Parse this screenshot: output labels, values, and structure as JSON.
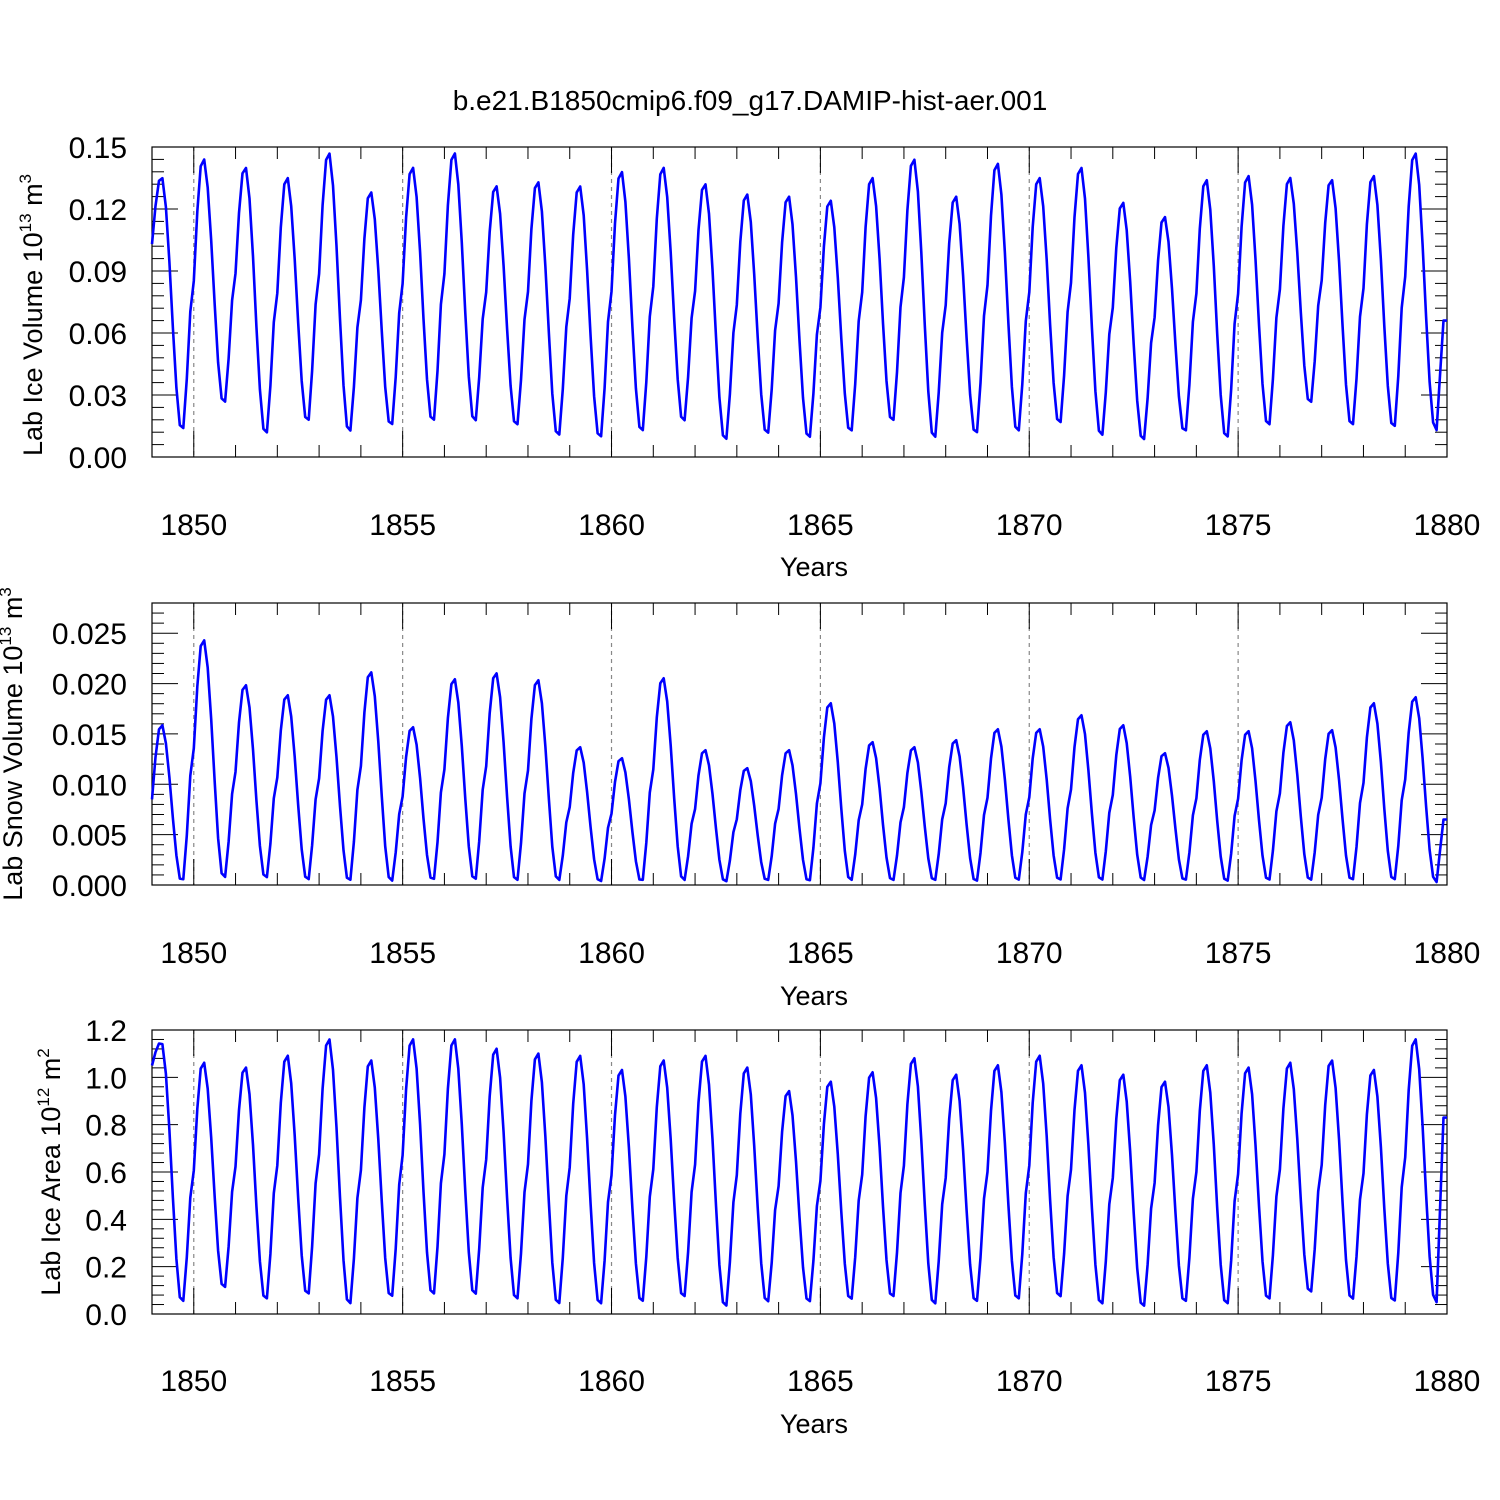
{
  "title": "b.e21.B1850cmip6.f09_g17.DAMIP-hist-aer.001",
  "colors": {
    "series": "#0000ff",
    "axes": "#000000",
    "grid": "#888888"
  },
  "chart_data": [
    {
      "type": "line",
      "name": "ice-volume",
      "ylabel_main": "Lab Ice Volume 10",
      "ylabel_exp": "13",
      "ylabel_unit": " m",
      "ylabel_unit_exp": "3",
      "xlabel": "Years",
      "xlim": [
        1849,
        1880
      ],
      "ylim": [
        0,
        0.15
      ],
      "xticks": [
        1850,
        1855,
        1860,
        1865,
        1870,
        1875,
        1880
      ],
      "yticks": [
        0.0,
        0.03,
        0.06,
        0.09,
        0.12,
        0.15
      ],
      "ytick_labels": [
        "0.00",
        "0.03",
        "0.06",
        "0.09",
        "0.12",
        "0.15"
      ],
      "dashed_year_lines": [
        1850,
        1855,
        1860,
        1865,
        1870,
        1875
      ],
      "annual_peaks": [
        0.136,
        0.145,
        0.141,
        0.136,
        0.148,
        0.129,
        0.141,
        0.148,
        0.132,
        0.134,
        0.132,
        0.139,
        0.141,
        0.133,
        0.128,
        0.127,
        0.125,
        0.136,
        0.145,
        0.127,
        0.143,
        0.136,
        0.141,
        0.124,
        0.117,
        0.135,
        0.137,
        0.136,
        0.135,
        0.137,
        0.148
      ],
      "annual_troughs": [
        0.012,
        0.025,
        0.01,
        0.016,
        0.011,
        0.014,
        0.016,
        0.016,
        0.014,
        0.009,
        0.008,
        0.011,
        0.016,
        0.007,
        0.01,
        0.008,
        0.011,
        0.016,
        0.008,
        0.01,
        0.011,
        0.015,
        0.009,
        0.007,
        0.011,
        0.008,
        0.014,
        0.025,
        0.014,
        0.013,
        0.013
      ],
      "start_value": 0.103,
      "end_value": 0.066
    },
    {
      "type": "line",
      "name": "snow-volume",
      "ylabel_main": "Lab Snow Volume 10",
      "ylabel_exp": "13",
      "ylabel_unit": " m",
      "ylabel_unit_exp": "3",
      "xlabel": "Years",
      "xlim": [
        1849,
        1880
      ],
      "ylim": [
        0,
        0.028
      ],
      "xticks": [
        1850,
        1855,
        1860,
        1865,
        1870,
        1875,
        1880
      ],
      "yticks": [
        0.0,
        0.005,
        0.01,
        0.015,
        0.02,
        0.025
      ],
      "ytick_labels": [
        "0.000",
        "0.005",
        "0.010",
        "0.015",
        "0.020",
        "0.025"
      ],
      "dashed_year_lines": [
        1850,
        1855,
        1860,
        1865,
        1870,
        1875
      ],
      "annual_peaks": [
        0.016,
        0.0245,
        0.02,
        0.019,
        0.019,
        0.0213,
        0.0158,
        0.0206,
        0.0212,
        0.0205,
        0.0138,
        0.0127,
        0.0207,
        0.0135,
        0.0117,
        0.0135,
        0.0182,
        0.0143,
        0.0138,
        0.0145,
        0.0156,
        0.0156,
        0.017,
        0.016,
        0.0132,
        0.0154,
        0.0154,
        0.0163,
        0.0155,
        0.0182,
        0.0188
      ],
      "annual_troughs": [
        0.0002,
        0.0005,
        0.0005,
        0.0003,
        0.0002,
        0.0002,
        0.0003,
        0.0003,
        0.0002,
        0.0003,
        0.0002,
        0.0002,
        0.0003,
        0.0002,
        0.0003,
        0.0002,
        0.0003,
        0.0003,
        0.0003,
        0.0002,
        0.0003,
        0.0003,
        0.0003,
        0.0003,
        0.0003,
        0.0002,
        0.0003,
        0.0003,
        0.0003,
        0.0003,
        0.0003
      ],
      "start_value": 0.0085,
      "end_value": 0.0065
    },
    {
      "type": "line",
      "name": "ice-area",
      "ylabel_main": "Lab Ice Area 10",
      "ylabel_exp": "12",
      "ylabel_unit": " m",
      "ylabel_unit_exp": "2",
      "xlabel": "Years",
      "xlim": [
        1849,
        1880
      ],
      "ylim": [
        0,
        1.2
      ],
      "xticks": [
        1850,
        1855,
        1860,
        1865,
        1870,
        1875,
        1880
      ],
      "yticks": [
        0.0,
        0.2,
        0.4,
        0.6,
        0.8,
        1.0,
        1.2
      ],
      "ytick_labels": [
        "0.0",
        "0.2",
        "0.4",
        "0.6",
        "0.8",
        "1.0",
        "1.2"
      ],
      "dashed_year_lines": [
        1850,
        1855,
        1860,
        1865,
        1870,
        1875
      ],
      "annual_peaks": [
        1.15,
        1.07,
        1.05,
        1.1,
        1.17,
        1.08,
        1.17,
        1.17,
        1.13,
        1.11,
        1.1,
        1.04,
        1.08,
        1.1,
        1.05,
        0.95,
        0.99,
        1.03,
        1.09,
        1.02,
        1.06,
        1.1,
        1.06,
        1.02,
        0.99,
        1.06,
        1.05,
        1.07,
        1.08,
        1.04,
        1.17
      ],
      "annual_troughs": [
        0.04,
        0.1,
        0.05,
        0.07,
        0.03,
        0.06,
        0.07,
        0.07,
        0.05,
        0.03,
        0.03,
        0.04,
        0.06,
        0.02,
        0.04,
        0.04,
        0.05,
        0.06,
        0.03,
        0.04,
        0.05,
        0.06,
        0.03,
        0.02,
        0.04,
        0.03,
        0.05,
        0.08,
        0.05,
        0.04,
        0.05
      ],
      "start_value": 1.05,
      "end_value": 0.83
    }
  ]
}
